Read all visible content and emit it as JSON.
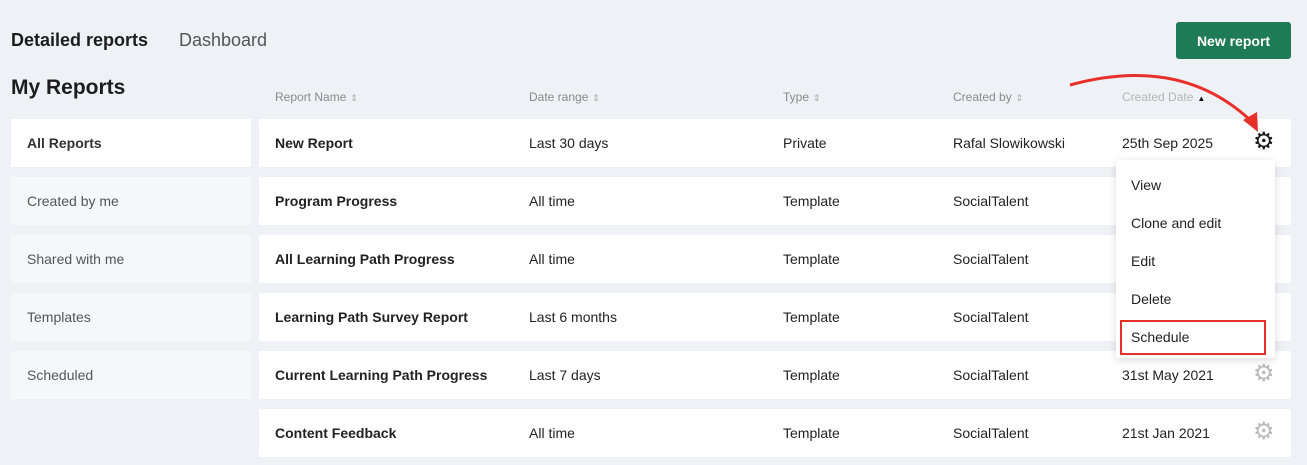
{
  "tabs": [
    {
      "label": "Detailed reports",
      "active": true
    },
    {
      "label": "Dashboard",
      "active": false
    }
  ],
  "new_report_label": "New report",
  "heading": "My Reports",
  "sidebar": {
    "items": [
      {
        "label": "All Reports",
        "active": true
      },
      {
        "label": "Created by me"
      },
      {
        "label": "Shared with me"
      },
      {
        "label": "Templates"
      },
      {
        "label": "Scheduled"
      }
    ]
  },
  "table": {
    "columns": [
      "Report Name",
      "Date range",
      "Type",
      "Created by",
      "Created Date"
    ],
    "sort": {
      "column": "Created Date",
      "direction": "desc"
    },
    "rows": [
      {
        "name": "New Report",
        "range": "Last 30 days",
        "type": "Private",
        "by": "Rafal Slowikowski",
        "date": "25th Sep 2025"
      },
      {
        "name": "Program Progress",
        "range": "All time",
        "type": "Template",
        "by": "SocialTalent",
        "date": ""
      },
      {
        "name": "All Learning Path Progress",
        "range": "All time",
        "type": "Template",
        "by": "SocialTalent",
        "date": ""
      },
      {
        "name": "Learning Path Survey Report",
        "range": "Last 6 months",
        "type": "Template",
        "by": "SocialTalent",
        "date": ""
      },
      {
        "name": "Current Learning Path Progress",
        "range": "Last 7 days",
        "type": "Template",
        "by": "SocialTalent",
        "date": "31st May 2021"
      },
      {
        "name": "Content Feedback",
        "range": "All time",
        "type": "Template",
        "by": "SocialTalent",
        "date": "21st Jan 2021"
      }
    ]
  },
  "menu": {
    "items": [
      "View",
      "Clone and edit",
      "Edit",
      "Delete",
      "Schedule"
    ],
    "highlighted": "Schedule"
  },
  "colors": {
    "accent": "#1f7a56",
    "annotation": "#e8302a"
  }
}
